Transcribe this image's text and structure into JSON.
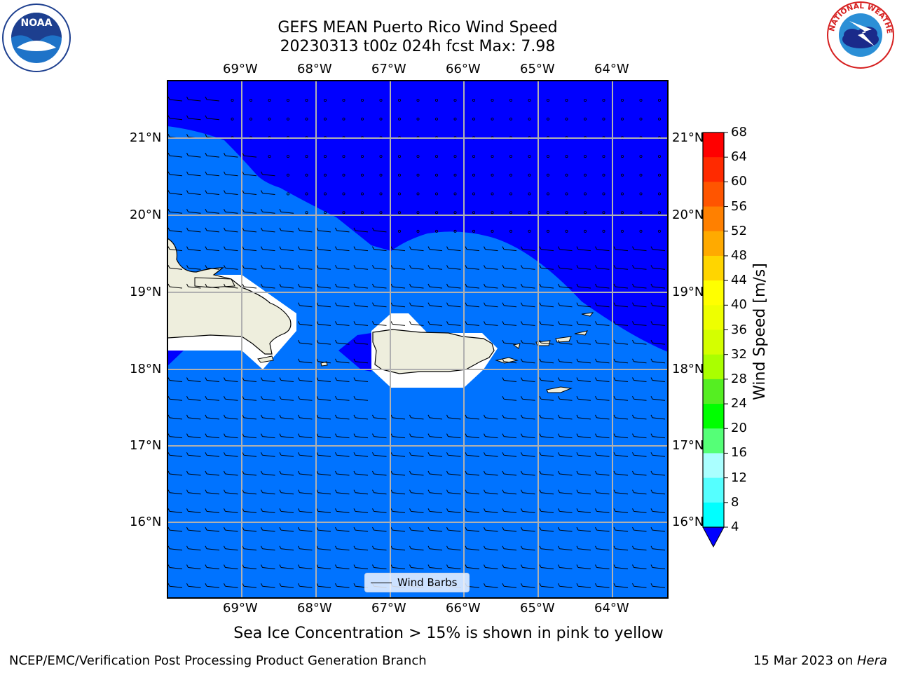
{
  "header": {
    "title_line1": "GEFS MEAN Puerto Rico Wind Speed",
    "title_line2": "20230313 t00z 024h fcst   Max: 7.98"
  },
  "logos": {
    "left": "noaa-logo",
    "right": "nws-logo",
    "noaa_text": "NOAA",
    "nws_ring_text": "NATIONAL WEATHER SERVICE"
  },
  "map": {
    "lon_labels": [
      "69°W",
      "68°W",
      "67°W",
      "66°W",
      "65°W",
      "64°W"
    ],
    "lat_labels": [
      "21°N",
      "20°N",
      "19°N",
      "18°N",
      "17°N",
      "16°N"
    ],
    "legend_label": "Wind Barbs",
    "colors": {
      "calm": "#0000ff",
      "light": "#0073ff",
      "land": "#eeeedd",
      "masked": "#ffffff",
      "grid": "#b0b0b0"
    }
  },
  "colorbar": {
    "label": "Wind Speed [m/s]",
    "ticks": [
      "68",
      "64",
      "60",
      "56",
      "52",
      "48",
      "44",
      "40",
      "36",
      "32",
      "28",
      "24",
      "20",
      "16",
      "12",
      "8",
      "4"
    ],
    "colors": [
      "#ff0000",
      "#ff2a00",
      "#ff5500",
      "#ff8000",
      "#ffaa00",
      "#ffd500",
      "#ffff00",
      "#eeff00",
      "#d4ff00",
      "#aaff00",
      "#55ee22",
      "#00ff00",
      "#55ff77",
      "#aaffff",
      "#55ffff",
      "#00ffff",
      "#00c8ff",
      "#0073ff"
    ],
    "under_color": "#0000ff"
  },
  "caption": "Sea Ice Concentration > 15% is shown in pink to yellow",
  "footer": {
    "left": "NCEP/EMC/Verification Post Processing Product Generation Branch",
    "right_date": "15 Mar 2023 on ",
    "right_host": "Hera"
  }
}
